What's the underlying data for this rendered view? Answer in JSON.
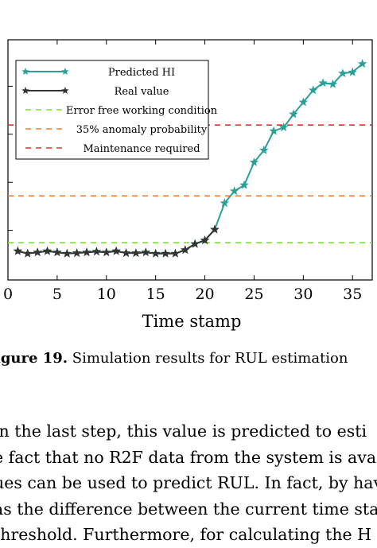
{
  "chart_data": {
    "type": "line",
    "xlabel": "Time stamp",
    "ylabel": "",
    "xlim": [
      0,
      37
    ],
    "ylim": [
      0,
      1.0
    ],
    "xticks": [
      0,
      5,
      10,
      15,
      20,
      25,
      30,
      35
    ],
    "grid": false,
    "legend_position": "top-left",
    "series": [
      {
        "name": "Predicted HI",
        "color": "#2aa198",
        "marker": "star",
        "x": [
          1,
          2,
          3,
          4,
          5,
          6,
          7,
          8,
          9,
          10,
          11,
          12,
          13,
          14,
          15,
          16,
          17,
          18,
          19,
          20,
          21,
          22,
          23,
          24,
          25,
          26,
          27,
          28,
          29,
          30,
          31,
          32,
          33,
          34,
          35,
          36
        ],
        "y": [
          0.12,
          0.11,
          0.115,
          0.12,
          0.115,
          0.11,
          0.112,
          0.115,
          0.118,
          0.115,
          0.12,
          0.112,
          0.112,
          0.115,
          0.11,
          0.11,
          0.11,
          0.125,
          0.15,
          0.165,
          0.21,
          0.32,
          0.37,
          0.395,
          0.49,
          0.54,
          0.62,
          0.635,
          0.69,
          0.74,
          0.79,
          0.82,
          0.815,
          0.86,
          0.865,
          0.9
        ]
      },
      {
        "name": "Real value",
        "color": "#333333",
        "marker": "star",
        "x": [
          1,
          2,
          3,
          4,
          5,
          6,
          7,
          8,
          9,
          10,
          11,
          12,
          13,
          14,
          15,
          16,
          17,
          18,
          19,
          20,
          21
        ],
        "y": [
          0.12,
          0.11,
          0.115,
          0.12,
          0.115,
          0.11,
          0.112,
          0.115,
          0.118,
          0.115,
          0.12,
          0.112,
          0.112,
          0.115,
          0.11,
          0.11,
          0.11,
          0.125,
          0.15,
          0.165,
          0.21
        ]
      },
      {
        "name": "Error free working condition",
        "color": "#7ee02a",
        "dash": true,
        "x": [
          0,
          37
        ],
        "y": [
          0.155,
          0.155
        ]
      },
      {
        "name": "35% anomaly probability",
        "color": "#ef7d2e",
        "dash": true,
        "x": [
          0,
          37
        ],
        "y": [
          0.35,
          0.35
        ]
      },
      {
        "name": "Maintenance required",
        "color": "#e0302a",
        "dash": true,
        "x": [
          0,
          37
        ],
        "y": [
          0.645,
          0.645
        ]
      }
    ]
  },
  "caption": {
    "label": "igure 19.",
    "text": " Simulation results for RUL estimation"
  },
  "body_lines": [
    "in the last step, this value is predicted to esti",
    "e fact that no R2F data from the system is ava",
    "ues can be used to predict RUL. In fact, by hav",
    "as the difference between the current time sta",
    "threshold. Furthermore, for calculating the H"
  ]
}
